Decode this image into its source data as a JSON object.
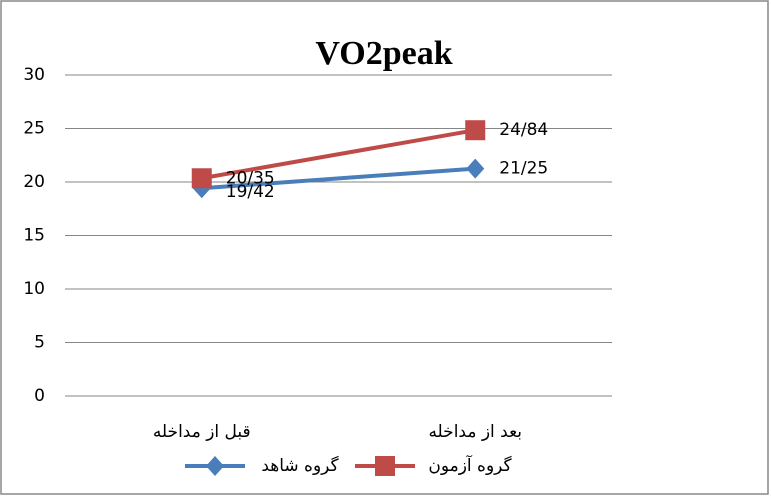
{
  "chart_data": {
    "type": "line",
    "title": "VO2peak",
    "categories": [
      "قبل از مداخله",
      "بعد از مداخله"
    ],
    "series": [
      {
        "name": "گروه شاهد",
        "color": "#4a7ebb",
        "marker": "diamond",
        "values": [
          19.42,
          21.25
        ],
        "value_labels": [
          "19/42",
          "21/25"
        ]
      },
      {
        "name": "گروه آزمون",
        "color": "#be4b48",
        "marker": "square",
        "values": [
          20.35,
          24.84
        ],
        "value_labels": [
          "20/35",
          "24/84"
        ]
      }
    ],
    "ylim": [
      0,
      30
    ],
    "yticks": [
      0,
      5,
      10,
      15,
      20,
      25,
      30
    ],
    "grid": true,
    "legend": "bottom"
  }
}
